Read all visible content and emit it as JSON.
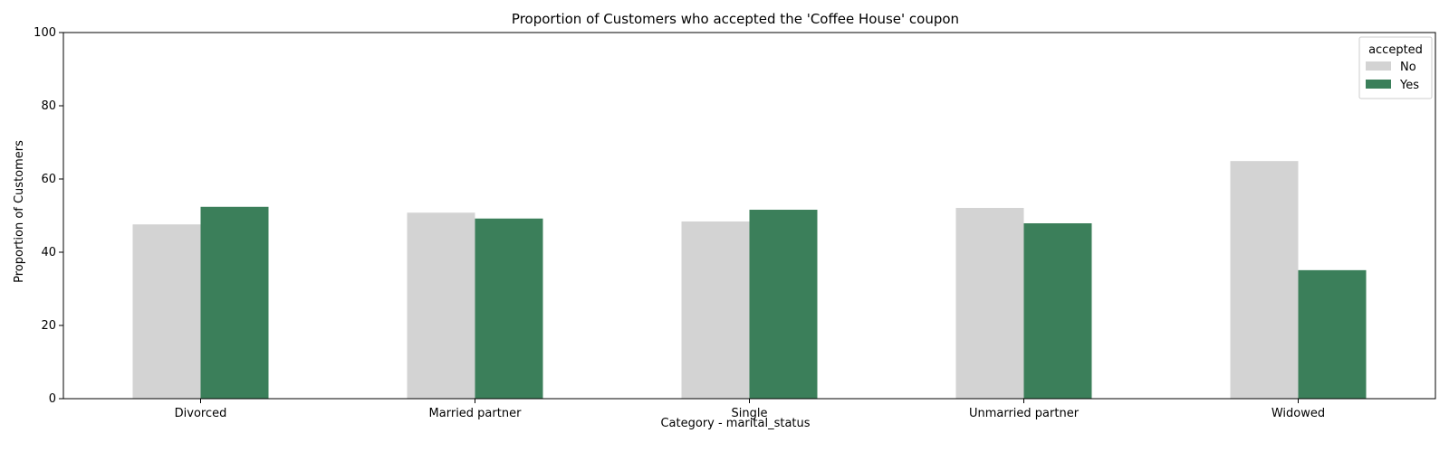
{
  "chart_data": {
    "type": "bar",
    "title": "Proportion of Customers who accepted the 'Coffee House' coupon",
    "xlabel": "Category - marital_status",
    "ylabel": "Proportion of Customers",
    "categories": [
      "Divorced",
      "Married partner",
      "Single",
      "Unmarried partner",
      "Widowed"
    ],
    "series": [
      {
        "name": "No",
        "color": "#d3d3d3",
        "values": [
          47.6,
          50.8,
          48.4,
          52.1,
          64.9
        ]
      },
      {
        "name": "Yes",
        "color": "#3b7f5a",
        "values": [
          52.4,
          49.2,
          51.6,
          47.9,
          35.1
        ]
      }
    ],
    "ylim": [
      0,
      100
    ],
    "yticks": [
      0,
      20,
      40,
      60,
      80,
      100
    ],
    "legend": {
      "title": "accepted",
      "placement": "top-right"
    },
    "grid": false
  }
}
